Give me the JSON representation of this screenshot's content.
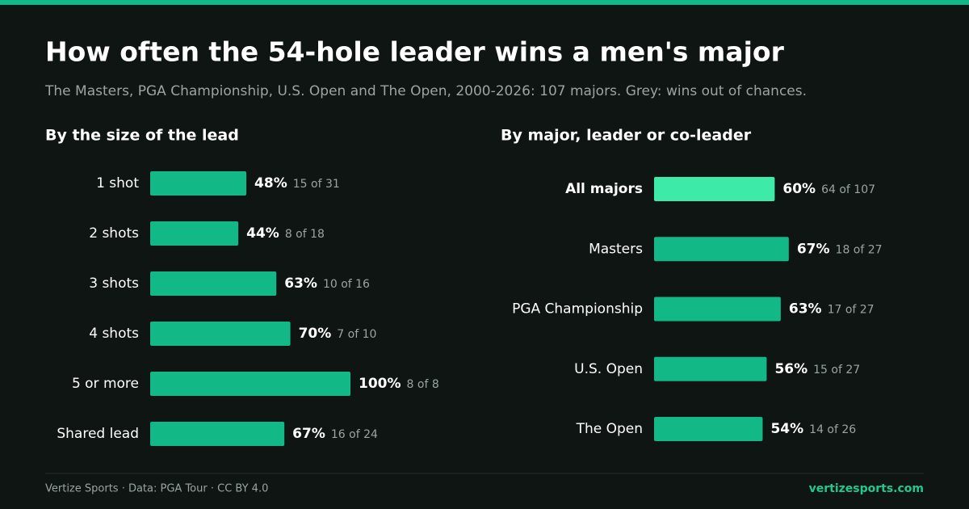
{
  "header": {
    "title": "How often the 54-hole leader wins a men's major",
    "subtitle": "The Masters, PGA Championship, U.S. Open and The Open, 2000-2026: 107 majors. Grey: wins out of chances."
  },
  "chart_data": [
    {
      "type": "bar",
      "orientation": "horizontal",
      "title": "By the size of the lead",
      "categories": [
        "1 shot",
        "2 shots",
        "3 shots",
        "4 shots",
        "5 or more",
        "Shared lead"
      ],
      "values": [
        48,
        44,
        63,
        70,
        100,
        67
      ],
      "value_labels": [
        "48%",
        "44%",
        "63%",
        "70%",
        "100%",
        "67%"
      ],
      "annotations": [
        "15 of 31",
        "8 of 18",
        "10 of 16",
        "7 of 10",
        "8 of 8",
        "16 of 24"
      ],
      "xlim": [
        0,
        100
      ],
      "color": "#12b886",
      "colors": [
        "#12b886",
        "#12b886",
        "#12b886",
        "#12b886",
        "#12b886",
        "#12b886"
      ]
    },
    {
      "type": "bar",
      "orientation": "horizontal",
      "title": "By major, leader or co-leader",
      "categories": [
        "All majors",
        "Masters",
        "PGA Championship",
        "U.S. Open",
        "The Open"
      ],
      "values": [
        60,
        67,
        63,
        56,
        54
      ],
      "value_labels": [
        "60%",
        "67%",
        "63%",
        "56%",
        "54%"
      ],
      "annotations": [
        "64 of 107",
        "18 of 27",
        "17 of 27",
        "15 of 27",
        "14 of 26"
      ],
      "xlim": [
        0,
        100
      ],
      "color": "#12b886",
      "colors": [
        "#3eeaa8",
        "#12b886",
        "#12b886",
        "#12b886",
        "#12b886"
      ]
    }
  ],
  "footer": {
    "credit": "Vertize Sports · Data: PGA Tour · CC BY 4.0",
    "site": "vertizesports.com"
  }
}
